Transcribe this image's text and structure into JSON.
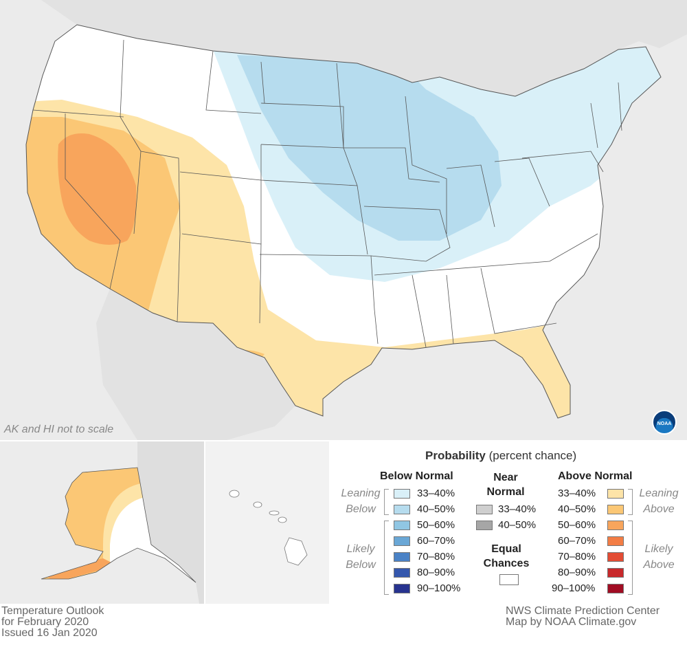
{
  "map": {
    "note": "AK and HI not to scale",
    "logo_text": "NOAA",
    "colors": {
      "below_33_40": "#d9f0f8",
      "below_40_50": "#b6dcee",
      "above_33_40": "#fde4a8",
      "above_40_50": "#fbc775",
      "above_50_60": "#f8a55c",
      "land": "#ffffff",
      "water": "#ebebeb"
    }
  },
  "legend": {
    "title": "Probability",
    "title_suffix": "(percent chance)",
    "below_normal": {
      "heading": "Below Normal",
      "group_leaning": [
        "Leaning",
        "Below"
      ],
      "group_likely": [
        "Likely",
        "Below"
      ],
      "items": [
        {
          "label": "33–40%",
          "color": "#d9f0f8"
        },
        {
          "label": "40–50%",
          "color": "#b6dcee"
        },
        {
          "label": "50–60%",
          "color": "#90c6e3"
        },
        {
          "label": "60–70%",
          "color": "#6aa7d6"
        },
        {
          "label": "70–80%",
          "color": "#4a82c6"
        },
        {
          "label": "80–90%",
          "color": "#3457ad"
        },
        {
          "label": "90–100%",
          "color": "#27338f"
        }
      ]
    },
    "near_normal": {
      "heading": [
        "Near",
        "Normal"
      ],
      "items": [
        {
          "label": "33–40%",
          "color": "#cfcfcf"
        },
        {
          "label": "40–50%",
          "color": "#a6a6a6"
        }
      ]
    },
    "equal_chances": {
      "heading": [
        "Equal",
        "Chances"
      ],
      "color": "#ffffff"
    },
    "above_normal": {
      "heading": "Above Normal",
      "group_leaning": [
        "Leaning",
        "Above"
      ],
      "group_likely": [
        "Likely",
        "Above"
      ],
      "items": [
        {
          "label": "33–40%",
          "color": "#fde4a8"
        },
        {
          "label": "40–50%",
          "color": "#fbc775"
        },
        {
          "label": "50–60%",
          "color": "#f8a55c"
        },
        {
          "label": "60–70%",
          "color": "#f37d45"
        },
        {
          "label": "70–80%",
          "color": "#e34c34"
        },
        {
          "label": "80–90%",
          "color": "#c8292b"
        },
        {
          "label": "90–100%",
          "color": "#a10d23"
        }
      ]
    }
  },
  "footer": {
    "left": [
      "Temperature Outlook",
      "for February 2020",
      "Issued 16 Jan 2020"
    ],
    "right": [
      "NWS Climate Prediction Center",
      "Map by NOAA Climate.gov"
    ]
  }
}
